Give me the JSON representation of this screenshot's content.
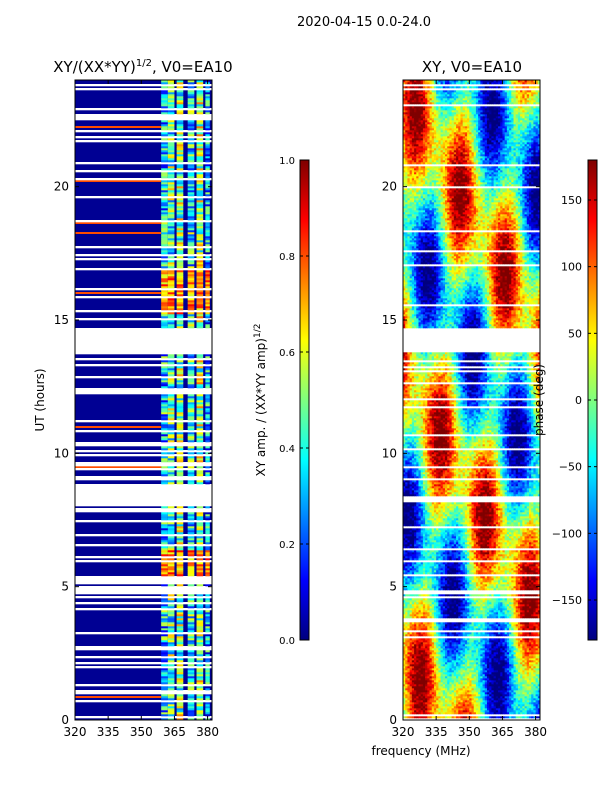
{
  "figure": {
    "suptitle": "2020-04-15 0.0-24.0",
    "shared_xlabel": "frequency (MHz)"
  },
  "colormap": [
    "#00007f",
    "#0000ff",
    "#007fff",
    "#00ffff",
    "#7fff7f",
    "#ffff00",
    "#ff7f00",
    "#ff0000",
    "#7f0000"
  ],
  "chart_data": [
    {
      "type": "heatmap",
      "title": "XY/(XX*YY)^1/2, V0=EA10",
      "ylabel": "UT (hours)",
      "xlim": [
        320,
        382
      ],
      "ylim": [
        0,
        24
      ],
      "x_ticks": [
        320,
        335,
        350,
        365,
        380
      ],
      "y_ticks": [
        0,
        5,
        10,
        15,
        20
      ],
      "background_value": 0.02,
      "band_ranges_mhz": [
        [
          359,
          362
        ],
        [
          362,
          365
        ],
        [
          366,
          369
        ],
        [
          371,
          374
        ],
        [
          375,
          378
        ],
        [
          379,
          381
        ]
      ],
      "band_values": [
        0.45,
        0.55,
        0.6,
        0.5,
        0.62,
        0.4
      ],
      "bright_intervals_hours": [
        [
          5.3,
          6.4
        ],
        [
          15.2,
          16.9
        ]
      ],
      "bright_value": 0.88,
      "blank_intervals_hours": [
        [
          13.8,
          14.7
        ],
        [
          8.2,
          8.7
        ],
        [
          4.7,
          4.9
        ],
        [
          2.6,
          2.75
        ],
        [
          0.95,
          1.1
        ],
        [
          9.6,
          9.7
        ]
      ],
      "colorbar": {
        "label": "XY amp. / (XX*YY amp)^1/2",
        "range": [
          0.0,
          1.0
        ],
        "ticks": [
          "0.0",
          "0.2",
          "0.4",
          "0.6",
          "0.8",
          "1.0"
        ]
      }
    },
    {
      "type": "heatmap",
      "title": "XY, V0=EA10",
      "ylabel": "",
      "xlim": [
        320,
        382
      ],
      "ylim": [
        0,
        24
      ],
      "x_ticks": [
        320,
        335,
        350,
        365,
        380
      ],
      "y_ticks": [
        0,
        5,
        10,
        15,
        20
      ],
      "value_range_deg": [
        -180,
        180
      ],
      "blank_intervals_hours": [
        [
          13.8,
          14.7
        ],
        [
          8.2,
          8.4
        ],
        [
          4.7,
          4.8
        ],
        [
          17.0,
          17.1
        ]
      ],
      "colorbar": {
        "label": "phase (deg)",
        "range": [
          -180,
          180
        ],
        "ticks": [
          "−150",
          "−100",
          "−50",
          "0",
          "50",
          "100",
          "150"
        ]
      }
    }
  ]
}
